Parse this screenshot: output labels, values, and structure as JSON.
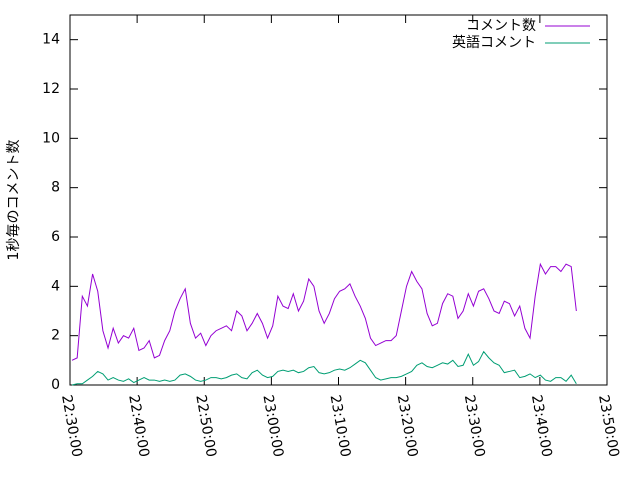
{
  "chart_data": {
    "type": "line",
    "y_label": "1秒毎のコメント数",
    "x": [
      "22:30:18",
      "22:31:04",
      "22:31:50",
      "22:32:36",
      "22:33:22",
      "22:34:08",
      "22:34:54",
      "22:35:40",
      "22:36:26",
      "22:37:12",
      "22:37:58",
      "22:38:44",
      "22:39:30",
      "22:40:16",
      "22:41:02",
      "22:41:48",
      "22:42:34",
      "22:43:20",
      "22:44:06",
      "22:44:52",
      "22:45:38",
      "22:46:24",
      "22:47:10",
      "22:47:56",
      "22:48:42",
      "22:49:28",
      "22:50:14",
      "22:51:00",
      "22:51:46",
      "22:52:32",
      "22:53:18",
      "22:54:04",
      "22:54:50",
      "22:55:36",
      "22:56:22",
      "22:57:08",
      "22:57:54",
      "22:58:40",
      "22:59:26",
      "23:00:12",
      "23:00:58",
      "23:01:44",
      "23:02:30",
      "23:03:16",
      "23:04:02",
      "23:04:48",
      "23:05:34",
      "23:06:20",
      "23:07:06",
      "23:07:52",
      "23:08:38",
      "23:09:24",
      "23:10:10",
      "23:10:56",
      "23:11:42",
      "23:12:28",
      "23:13:14",
      "23:14:00",
      "23:14:46",
      "23:15:32",
      "23:16:18",
      "23:17:04",
      "23:17:50",
      "23:18:36",
      "23:19:22",
      "23:20:08",
      "23:20:54",
      "23:21:40",
      "23:22:26",
      "23:23:12",
      "23:23:58",
      "23:24:44",
      "23:25:30",
      "23:26:16",
      "23:27:02",
      "23:27:48",
      "23:28:34",
      "23:29:20",
      "23:30:06",
      "23:30:52",
      "23:31:38",
      "23:32:24",
      "23:33:10",
      "23:33:56",
      "23:34:42",
      "23:35:28",
      "23:36:14",
      "23:37:00",
      "23:37:46",
      "23:38:32",
      "23:39:18",
      "23:40:04",
      "23:40:50",
      "23:41:36",
      "23:42:22",
      "23:43:08",
      "23:43:54",
      "23:44:40",
      "23:45:26"
    ],
    "series": [
      {
        "name": "コメント数",
        "color": "#9400d3",
        "values": [
          1.0,
          1.1,
          3.6,
          3.2,
          4.5,
          3.8,
          2.2,
          1.5,
          2.3,
          1.7,
          2.0,
          1.9,
          2.3,
          1.4,
          1.5,
          1.8,
          1.1,
          1.2,
          1.8,
          2.2,
          3.0,
          3.5,
          3.9,
          2.5,
          1.9,
          2.1,
          1.6,
          2.0,
          2.2,
          2.3,
          2.4,
          2.2,
          3.0,
          2.8,
          2.2,
          2.5,
          2.9,
          2.5,
          1.9,
          2.4,
          3.6,
          3.2,
          3.1,
          3.7,
          3.0,
          3.4,
          4.3,
          4.0,
          3.0,
          2.5,
          2.9,
          3.5,
          3.8,
          3.9,
          4.1,
          3.6,
          3.2,
          2.7,
          1.9,
          1.6,
          1.7,
          1.8,
          1.8,
          2.0,
          3.0,
          4.0,
          4.6,
          4.2,
          3.9,
          2.9,
          2.4,
          2.5,
          3.3,
          3.7,
          3.6,
          2.7,
          3.0,
          3.7,
          3.2,
          3.8,
          3.9,
          3.5,
          3.0,
          2.9,
          3.4,
          3.3,
          2.8,
          3.2,
          2.3,
          1.9,
          3.6,
          4.9,
          4.5,
          4.8,
          4.8,
          4.6,
          4.9,
          4.8,
          3.0
        ]
      },
      {
        "name": "英語コメント",
        "color": "#009e73",
        "values": [
          0.0,
          0.05,
          0.05,
          0.2,
          0.35,
          0.55,
          0.45,
          0.2,
          0.3,
          0.2,
          0.15,
          0.25,
          0.1,
          0.2,
          0.3,
          0.2,
          0.2,
          0.15,
          0.2,
          0.15,
          0.2,
          0.4,
          0.45,
          0.35,
          0.2,
          0.15,
          0.2,
          0.3,
          0.3,
          0.25,
          0.3,
          0.4,
          0.45,
          0.3,
          0.25,
          0.5,
          0.6,
          0.4,
          0.3,
          0.35,
          0.55,
          0.6,
          0.55,
          0.6,
          0.5,
          0.55,
          0.7,
          0.75,
          0.5,
          0.45,
          0.5,
          0.6,
          0.65,
          0.6,
          0.7,
          0.85,
          1.0,
          0.9,
          0.6,
          0.3,
          0.2,
          0.25,
          0.3,
          0.3,
          0.35,
          0.45,
          0.55,
          0.8,
          0.9,
          0.75,
          0.7,
          0.8,
          0.9,
          0.85,
          1.0,
          0.75,
          0.8,
          1.25,
          0.8,
          0.95,
          1.35,
          1.1,
          0.9,
          0.8,
          0.5,
          0.55,
          0.6,
          0.3,
          0.35,
          0.45,
          0.3,
          0.4,
          0.2,
          0.15,
          0.3,
          0.3,
          0.15,
          0.4,
          0.05
        ]
      }
    ],
    "xlim": [
      "22:30:00",
      "23:50:00"
    ],
    "xticks": [
      "22:30:00",
      "22:40:00",
      "22:50:00",
      "23:00:00",
      "23:10:00",
      "23:20:00",
      "23:30:00",
      "23:40:00",
      "23:50:00"
    ],
    "ylim": [
      0,
      15
    ],
    "yticks": [
      0,
      2,
      4,
      6,
      8,
      10,
      12,
      14
    ],
    "legend": "top-right"
  }
}
